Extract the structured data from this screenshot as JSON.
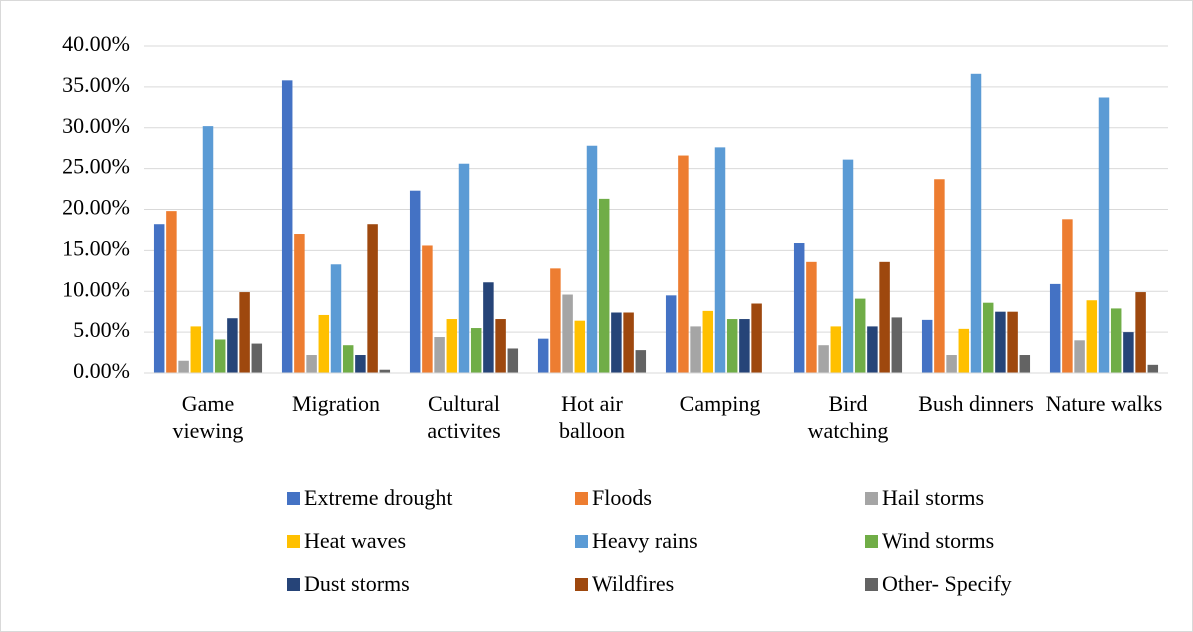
{
  "chart_data": {
    "type": "bar",
    "categories": [
      "Game viewing",
      "Migration",
      "Cultural activites",
      "Hot air balloon",
      "Camping",
      "Bird watching",
      "Bush dinners",
      "Nature walks"
    ],
    "series": [
      {
        "name": "Extreme drought",
        "color": "#4472C4",
        "values": [
          18.2,
          35.8,
          22.3,
          4.2,
          9.5,
          15.9,
          6.5,
          10.9
        ]
      },
      {
        "name": "Floods",
        "color": "#ED7D31",
        "values": [
          19.8,
          17.0,
          15.6,
          12.8,
          26.6,
          13.6,
          23.7,
          18.8
        ]
      },
      {
        "name": "Hail storms",
        "color": "#A5A5A5",
        "values": [
          1.5,
          2.2,
          4.4,
          9.6,
          5.7,
          3.4,
          2.2,
          4.0
        ]
      },
      {
        "name": "Heat waves",
        "color": "#FFC000",
        "values": [
          5.7,
          7.1,
          6.6,
          6.4,
          7.6,
          5.7,
          5.4,
          8.9
        ]
      },
      {
        "name": "Heavy rains",
        "color": "#5B9BD5",
        "values": [
          30.2,
          13.3,
          25.6,
          27.8,
          27.6,
          26.1,
          36.6,
          33.7
        ]
      },
      {
        "name": "Wind storms",
        "color": "#70AD47",
        "values": [
          4.1,
          3.4,
          5.5,
          21.3,
          6.6,
          9.1,
          8.6,
          7.9
        ]
      },
      {
        "name": "Dust storms",
        "color": "#264478",
        "values": [
          6.7,
          2.2,
          11.1,
          7.4,
          6.6,
          5.7,
          7.5,
          5.0
        ]
      },
      {
        "name": "Wildfires",
        "color": "#9E480E",
        "values": [
          9.9,
          18.2,
          6.6,
          7.4,
          8.5,
          13.6,
          7.5,
          9.9
        ]
      },
      {
        "name": "Other- Specify",
        "color": "#636363",
        "values": [
          3.6,
          0.4,
          3.0,
          2.8,
          0,
          6.8,
          2.2,
          1.0
        ]
      }
    ],
    "ylim": [
      0,
      40
    ],
    "yticks": [
      {
        "value": 0,
        "label": "0.00%"
      },
      {
        "value": 5,
        "label": "5.00%"
      },
      {
        "value": 10,
        "label": "10.00%"
      },
      {
        "value": 15,
        "label": "15.00%"
      },
      {
        "value": 20,
        "label": "20.00%"
      },
      {
        "value": 25,
        "label": "25.00%"
      },
      {
        "value": 30,
        "label": "30.00%"
      },
      {
        "value": 35,
        "label": "35.00%"
      },
      {
        "value": 40,
        "label": "40.00%"
      }
    ],
    "grid": true,
    "legend": "bottom"
  }
}
